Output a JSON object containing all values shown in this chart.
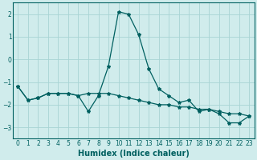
{
  "xlabel": "Humidex (Indice chaleur)",
  "x": [
    0,
    1,
    2,
    3,
    4,
    5,
    6,
    7,
    8,
    9,
    10,
    11,
    12,
    13,
    14,
    15,
    16,
    17,
    18,
    19,
    20,
    21,
    22,
    23
  ],
  "y_line1": [
    -1.2,
    -1.8,
    -1.7,
    -1.5,
    -1.5,
    -1.5,
    -1.6,
    -2.3,
    -1.6,
    -0.3,
    2.1,
    2.0,
    1.1,
    -0.4,
    -1.3,
    -1.6,
    -1.9,
    -1.8,
    -2.3,
    -2.2,
    -2.4,
    -2.8,
    -2.8,
    -2.5
  ],
  "y_line2": [
    -1.2,
    -1.8,
    -1.7,
    -1.5,
    -1.5,
    -1.5,
    -1.6,
    -1.5,
    -1.5,
    -1.5,
    -1.6,
    -1.7,
    -1.8,
    -1.9,
    -2.0,
    -2.0,
    -2.1,
    -2.1,
    -2.2,
    -2.2,
    -2.3,
    -2.4,
    -2.4,
    -2.5
  ],
  "line_color": "#006060",
  "bg_color": "#d0ecec",
  "grid_color": "#a8d4d4",
  "ylim": [
    -3.5,
    2.5
  ],
  "xlim": [
    -0.5,
    23.5
  ],
  "yticks": [
    -3,
    -2,
    -1,
    0,
    1,
    2
  ],
  "xticks": [
    0,
    1,
    2,
    3,
    4,
    5,
    6,
    7,
    8,
    9,
    10,
    11,
    12,
    13,
    14,
    15,
    16,
    17,
    18,
    19,
    20,
    21,
    22,
    23
  ],
  "marker": "*",
  "markersize": 3,
  "linewidth": 0.9,
  "fontsize_label": 7,
  "fontsize_tick": 5.5
}
